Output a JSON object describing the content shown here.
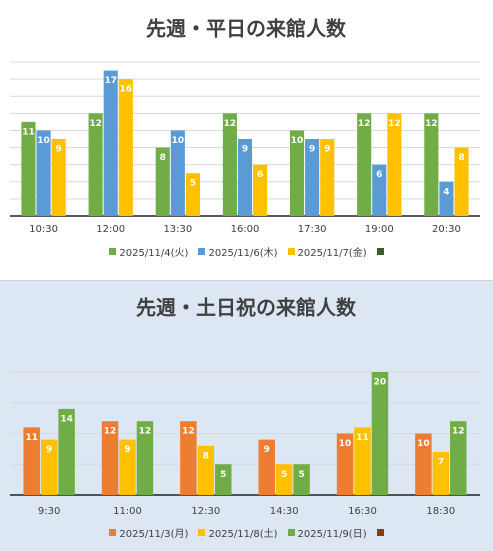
{
  "chart_data": [
    {
      "type": "bar",
      "title": "先週・平日の来館人数",
      "categories": [
        "10:30",
        "12:00",
        "13:30",
        "16:00",
        "17:30",
        "19:00",
        "20:30"
      ],
      "series": [
        {
          "name": "2025/11/4(火)",
          "color": "#70ad47",
          "values": [
            11,
            12,
            8,
            12,
            10,
            12,
            12
          ]
        },
        {
          "name": "2025/11/6(木)",
          "color": "#5b9bd5",
          "values": [
            10,
            17,
            10,
            9,
            9,
            6,
            4
          ]
        },
        {
          "name": "2025/11/7(金)",
          "color": "#ffc000",
          "values": [
            9,
            16,
            5,
            6,
            9,
            12,
            8
          ]
        }
      ],
      "ylim": [
        0,
        18
      ],
      "yticks": [
        0,
        2,
        4,
        6,
        8,
        10,
        12,
        14,
        16,
        18
      ],
      "grid": true
    },
    {
      "type": "bar",
      "title": "先週・土日祝の来館人数",
      "categories": [
        "9:30",
        "11:00",
        "12:30",
        "14:30",
        "16:30",
        "18:30"
      ],
      "series": [
        {
          "name": "2025/11/3(月)",
          "color": "#ed7d31",
          "values": [
            11,
            12,
            12,
            9,
            10,
            10
          ]
        },
        {
          "name": "2025/11/8(土)",
          "color": "#ffc000",
          "values": [
            9,
            9,
            8,
            5,
            11,
            7
          ]
        },
        {
          "name": "2025/11/9(日)",
          "color": "#70ad47",
          "values": [
            14,
            12,
            5,
            5,
            20,
            12
          ]
        }
      ],
      "ylim": [
        0,
        20
      ],
      "yticks": [
        0,
        5,
        10,
        15,
        20
      ],
      "grid": true
    }
  ]
}
